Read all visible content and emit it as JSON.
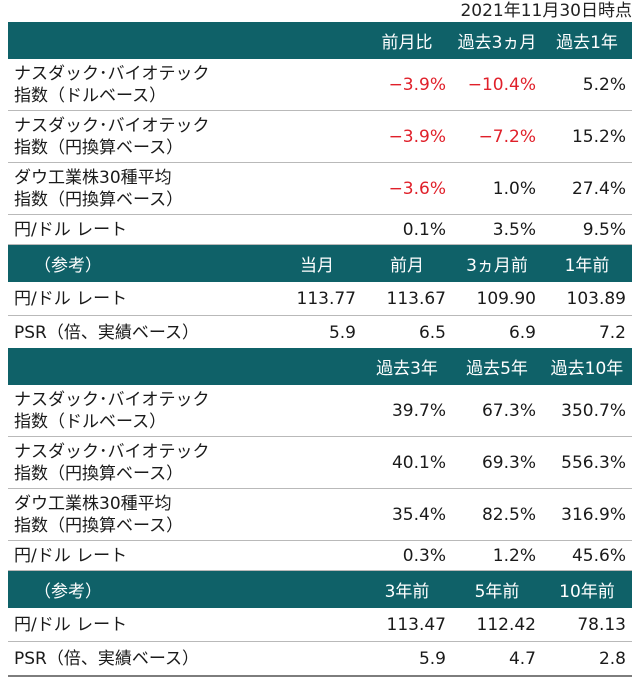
{
  "date_label": "2021年11月30日時点",
  "table1": {
    "headers": [
      "前月比",
      "過去3ヵ月",
      "過去1年"
    ],
    "rows": [
      {
        "label1": "ナスダック･バイオテック",
        "label2": "指数（ドルベース）",
        "values": [
          "−3.9%",
          "−10.4%",
          "5.2%"
        ]
      },
      {
        "label1": "ナスダック･バイオテック",
        "label2": "指数（円換算ベース）",
        "values": [
          "−3.9%",
          "−7.2%",
          "15.2%"
        ]
      },
      {
        "label1": "ダウ工業株30種平均",
        "label2": "指数（円換算ベース）",
        "values": [
          "−3.6%",
          "1.0%",
          "27.4%"
        ]
      },
      {
        "label1": "円/ドル レート",
        "values": [
          "0.1%",
          "3.5%",
          "9.5%"
        ]
      }
    ],
    "ref_header": {
      "label": "（参考）",
      "cols": [
        "当月",
        "前月",
        "3ヵ月前",
        "1年前"
      ]
    },
    "ref_rows": [
      {
        "label": "円/ドル レート",
        "values": [
          "113.77",
          "113.67",
          "109.90",
          "103.89"
        ]
      },
      {
        "label": "PSR（倍、実績ベース）",
        "values": [
          "5.9",
          "6.5",
          "6.9",
          "7.2"
        ]
      }
    ]
  },
  "table2": {
    "headers": [
      "過去3年",
      "過去5年",
      "過去10年"
    ],
    "rows": [
      {
        "label1": "ナスダック･バイオテック",
        "label2": "指数（ドルベース）",
        "values": [
          "39.7%",
          "67.3%",
          "350.7%"
        ]
      },
      {
        "label1": "ナスダック･バイオテック",
        "label2": "指数（円換算ベース）",
        "values": [
          "40.1%",
          "69.3%",
          "556.3%"
        ]
      },
      {
        "label1": "ダウ工業株30種平均",
        "label2": "指数（円換算ベース）",
        "values": [
          "35.4%",
          "82.5%",
          "316.9%"
        ]
      },
      {
        "label1": "円/ドル レート",
        "values": [
          "0.3%",
          "1.2%",
          "45.6%"
        ]
      }
    ],
    "ref_header": {
      "label": "（参考）",
      "cols": [
        "3年前",
        "5年前",
        "10年前"
      ]
    },
    "ref_rows": [
      {
        "label": "円/ドル レート",
        "values": [
          "113.47",
          "112.42",
          "78.13"
        ]
      },
      {
        "label": "PSR（倍、実績ベース）",
        "values": [
          "5.9",
          "4.7",
          "2.8"
        ]
      }
    ]
  },
  "colors": {
    "header_bg": "#0f6168",
    "header_text": "#ffffff",
    "negative": "#e0202a"
  }
}
